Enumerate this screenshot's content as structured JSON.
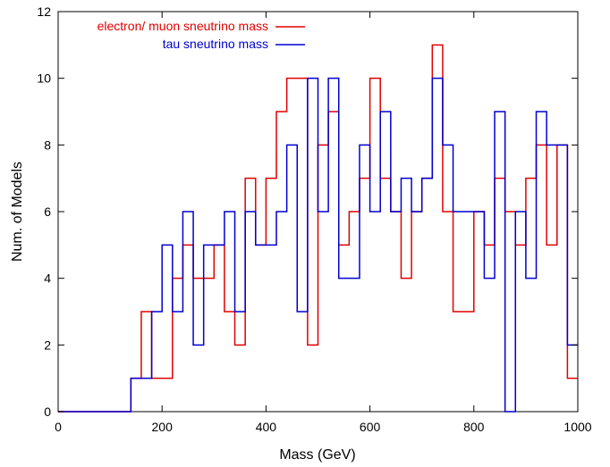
{
  "chart_data": {
    "type": "line",
    "subtype": "step-histogram",
    "xlabel": "Mass (GeV)",
    "ylabel": "Num. of Models",
    "xlim": [
      0,
      1000
    ],
    "ylim": [
      0,
      12
    ],
    "xticks": [
      0,
      200,
      400,
      600,
      800,
      1000
    ],
    "yticks": [
      0,
      2,
      4,
      6,
      8,
      10,
      12
    ],
    "grid": false,
    "legend_position": "top-left",
    "bin_width": 20,
    "series": [
      {
        "name": "electron/ muon sneutrino mass",
        "color": "#e00000",
        "bins": [
          {
            "x": 0,
            "y": 0
          },
          {
            "x": 140,
            "y": 1
          },
          {
            "x": 160,
            "y": 3
          },
          {
            "x": 180,
            "y": 1
          },
          {
            "x": 220,
            "y": 4
          },
          {
            "x": 240,
            "y": 5
          },
          {
            "x": 260,
            "y": 4
          },
          {
            "x": 300,
            "y": 5
          },
          {
            "x": 320,
            "y": 3
          },
          {
            "x": 340,
            "y": 2
          },
          {
            "x": 360,
            "y": 7
          },
          {
            "x": 380,
            "y": 5
          },
          {
            "x": 400,
            "y": 7
          },
          {
            "x": 420,
            "y": 9
          },
          {
            "x": 440,
            "y": 10
          },
          {
            "x": 480,
            "y": 2
          },
          {
            "x": 500,
            "y": 8
          },
          {
            "x": 520,
            "y": 9
          },
          {
            "x": 540,
            "y": 5
          },
          {
            "x": 560,
            "y": 6
          },
          {
            "x": 580,
            "y": 7
          },
          {
            "x": 600,
            "y": 10
          },
          {
            "x": 620,
            "y": 7
          },
          {
            "x": 640,
            "y": 6
          },
          {
            "x": 660,
            "y": 4
          },
          {
            "x": 680,
            "y": 6
          },
          {
            "x": 700,
            "y": 7
          },
          {
            "x": 720,
            "y": 11
          },
          {
            "x": 740,
            "y": 6
          },
          {
            "x": 760,
            "y": 3
          },
          {
            "x": 800,
            "y": 6
          },
          {
            "x": 820,
            "y": 5
          },
          {
            "x": 840,
            "y": 7
          },
          {
            "x": 860,
            "y": 6
          },
          {
            "x": 880,
            "y": 5
          },
          {
            "x": 900,
            "y": 7
          },
          {
            "x": 920,
            "y": 8
          },
          {
            "x": 940,
            "y": 5
          },
          {
            "x": 960,
            "y": 8
          },
          {
            "x": 980,
            "y": 1
          }
        ]
      },
      {
        "name": "tau sneutrino mass",
        "color": "#0000d0",
        "bins": [
          {
            "x": 0,
            "y": 0
          },
          {
            "x": 140,
            "y": 1
          },
          {
            "x": 180,
            "y": 3
          },
          {
            "x": 200,
            "y": 5
          },
          {
            "x": 220,
            "y": 3
          },
          {
            "x": 240,
            "y": 6
          },
          {
            "x": 260,
            "y": 2
          },
          {
            "x": 280,
            "y": 5
          },
          {
            "x": 320,
            "y": 6
          },
          {
            "x": 340,
            "y": 3
          },
          {
            "x": 360,
            "y": 6
          },
          {
            "x": 380,
            "y": 5
          },
          {
            "x": 420,
            "y": 6
          },
          {
            "x": 440,
            "y": 8
          },
          {
            "x": 460,
            "y": 3
          },
          {
            "x": 480,
            "y": 10
          },
          {
            "x": 500,
            "y": 6
          },
          {
            "x": 520,
            "y": 10
          },
          {
            "x": 540,
            "y": 4
          },
          {
            "x": 580,
            "y": 8
          },
          {
            "x": 600,
            "y": 6
          },
          {
            "x": 620,
            "y": 9
          },
          {
            "x": 640,
            "y": 6
          },
          {
            "x": 660,
            "y": 7
          },
          {
            "x": 680,
            "y": 6
          },
          {
            "x": 700,
            "y": 7
          },
          {
            "x": 720,
            "y": 10
          },
          {
            "x": 740,
            "y": 8
          },
          {
            "x": 760,
            "y": 6
          },
          {
            "x": 820,
            "y": 4
          },
          {
            "x": 840,
            "y": 9
          },
          {
            "x": 860,
            "y": 0
          },
          {
            "x": 880,
            "y": 6
          },
          {
            "x": 900,
            "y": 4
          },
          {
            "x": 920,
            "y": 9
          },
          {
            "x": 940,
            "y": 8
          },
          {
            "x": 980,
            "y": 2
          }
        ]
      }
    ]
  }
}
